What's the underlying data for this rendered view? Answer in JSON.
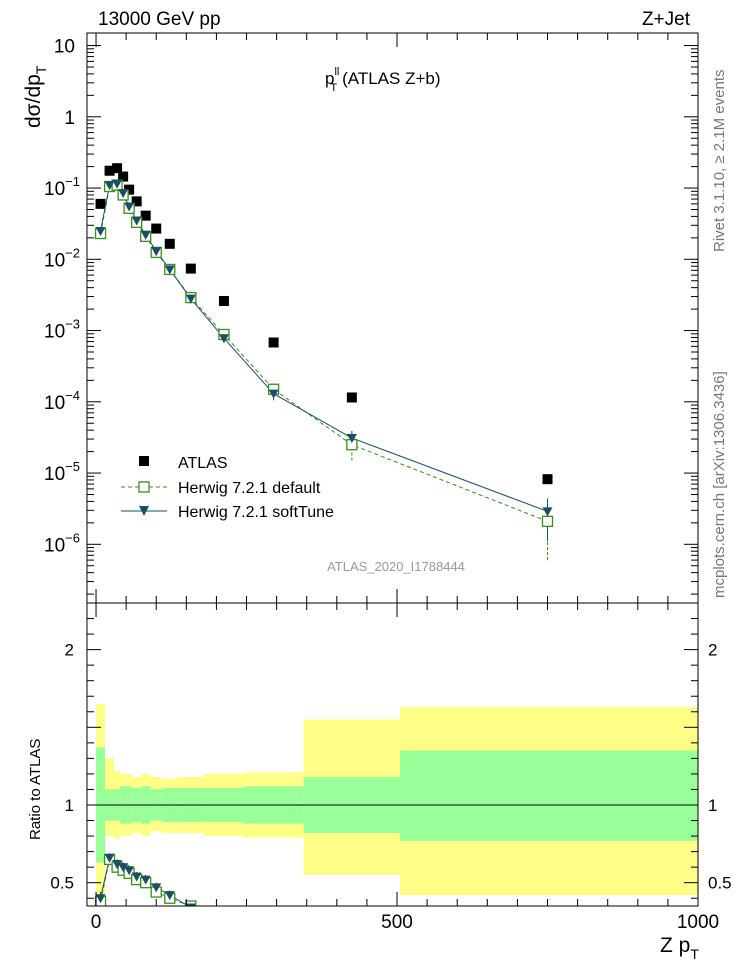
{
  "header": {
    "left": "13000 GeV pp",
    "right": "Z+Jet"
  },
  "side_text": {
    "rivet": "Rivet 3.1.10, ≥ 2.1M events",
    "mcplots": "mcplots.cern.ch [arXiv:1306.3436]"
  },
  "chart_data": [
    {
      "type": "scatter",
      "panel": "main",
      "title": "p_T^ll (ATLAS Z+b)",
      "title_main": "p",
      "title_sup": "ll",
      "title_sub": "T",
      "title_rest": "(ATLAS Z+b)",
      "ylabel": "dσ/dp_T",
      "ylabel_main": "dσ/dp",
      "ylabel_sub": "T",
      "xlabel": "Z p_T",
      "yscale": "log",
      "xlim": [
        -15,
        1000
      ],
      "ylim": [
        1.5e-07,
        15
      ],
      "y_tick_labels": [
        {
          "value": 10,
          "label": "10"
        },
        {
          "value": 1,
          "label": "1"
        },
        {
          "value": 0.1,
          "label": "10",
          "exp": "−1"
        },
        {
          "value": 0.01,
          "label": "10",
          "exp": "−2"
        },
        {
          "value": 0.001,
          "label": "10",
          "exp": "−3"
        },
        {
          "value": 0.0001,
          "label": "10",
          "exp": "−4"
        },
        {
          "value": 1e-05,
          "label": "10",
          "exp": "−5"
        },
        {
          "value": 1e-06,
          "label": "10",
          "exp": "−6"
        }
      ],
      "watermark": "ATLAS_2020_I1788444",
      "legend": {
        "position": "bottom-left",
        "entries": [
          "ATLAS",
          "Herwig 7.2.1 default",
          "Herwig 7.2.1 softTune"
        ]
      },
      "series": [
        {
          "name": "ATLAS",
          "style": "black-square",
          "color": "#000000",
          "x": [
            7.5,
            22.5,
            35,
            45,
            55,
            67.5,
            82.5,
            100,
            122.5,
            157.5,
            212.5,
            295,
            425,
            750
          ],
          "y": [
            0.06,
            0.175,
            0.19,
            0.145,
            0.095,
            0.065,
            0.041,
            0.027,
            0.0165,
            0.0074,
            0.0026,
            0.00068,
            0.000115,
            8.2e-06
          ],
          "xerr": [
            7.5,
            7.5,
            5,
            5,
            5,
            7.5,
            7.5,
            10,
            12.5,
            22.5,
            32.5,
            50,
            80,
            250
          ]
        },
        {
          "name": "Herwig 7.2.1 default",
          "style": "open-square-dashed",
          "color": "#3a8e1a",
          "x": [
            7.5,
            22.5,
            35,
            45,
            55,
            67.5,
            82.5,
            100,
            122.5,
            157.5,
            212.5,
            295,
            425,
            750
          ],
          "y": [
            0.023,
            0.105,
            0.11,
            0.08,
            0.052,
            0.033,
            0.021,
            0.0125,
            0.0072,
            0.0029,
            0.00088,
            0.00015,
            2.5e-05,
            2.1e-06
          ],
          "yerr_low": [
            0.002,
            0.006,
            0.006,
            0.005,
            0.003,
            0.002,
            0.0015,
            0.001,
            0.0006,
            0.00025,
            8e-05,
            3e-05,
            1e-05,
            1.5e-06
          ],
          "yerr_high": [
            0.002,
            0.006,
            0.006,
            0.005,
            0.003,
            0.002,
            0.0015,
            0.001,
            0.0006,
            0.00025,
            8e-05,
            3e-05,
            1e-05,
            1.2e-06
          ]
        },
        {
          "name": "Herwig 7.2.1 softTune",
          "style": "filled-triangle-solid",
          "color": "#1a4f66",
          "x": [
            7.5,
            22.5,
            35,
            45,
            55,
            67.5,
            82.5,
            100,
            122.5,
            157.5,
            212.5,
            295,
            425,
            750
          ],
          "y": [
            0.025,
            0.11,
            0.115,
            0.085,
            0.055,
            0.035,
            0.022,
            0.013,
            0.0072,
            0.0028,
            0.00078,
            0.00013,
            3.1e-05,
            2.9e-06
          ],
          "yerr_low": [
            0.002,
            0.006,
            0.006,
            0.005,
            0.003,
            0.002,
            0.0015,
            0.001,
            0.0006,
            0.00025,
            7e-05,
            2.5e-05,
            8e-06,
            1.8e-06
          ],
          "yerr_high": [
            0.002,
            0.006,
            0.006,
            0.005,
            0.003,
            0.002,
            0.0015,
            0.001,
            0.0006,
            0.00025,
            7e-05,
            2.5e-05,
            8e-06,
            1.5e-06
          ]
        }
      ]
    },
    {
      "type": "scatter",
      "panel": "ratio",
      "ylabel": "Ratio to ATLAS",
      "xlabel": "Z p_T",
      "xlabel_main": "Z p",
      "xlabel_sub": "T",
      "xlim": [
        -15,
        1000
      ],
      "ylim": [
        0.35,
        2.3
      ],
      "x_tick_labels": [
        "0",
        "500",
        "1000"
      ],
      "y_tick_labels": [
        "0.5",
        "1",
        "2"
      ],
      "reference_line": 1,
      "bands": {
        "bin_edges": [
          0,
          15,
          30,
          40,
          50,
          60,
          75,
          90,
          110,
          135,
          180,
          245,
          345,
          505,
          1000
        ],
        "inner_color": "#99ff99",
        "outer_color": "#ffff88",
        "inner_low": [
          0.63,
          0.9,
          0.9,
          0.88,
          0.88,
          0.89,
          0.88,
          0.9,
          0.89,
          0.89,
          0.89,
          0.88,
          0.82,
          0.77
        ],
        "inner_high": [
          1.37,
          1.1,
          1.1,
          1.12,
          1.12,
          1.11,
          1.12,
          1.1,
          1.11,
          1.11,
          1.11,
          1.12,
          1.18,
          1.35
        ],
        "outer_low": [
          0.35,
          0.8,
          0.78,
          0.8,
          0.8,
          0.82,
          0.8,
          0.83,
          0.82,
          0.82,
          0.8,
          0.79,
          0.55,
          0.42
        ],
        "outer_high": [
          1.65,
          1.3,
          1.22,
          1.2,
          1.2,
          1.18,
          1.2,
          1.18,
          1.17,
          1.18,
          1.2,
          1.21,
          1.55,
          1.63
        ]
      },
      "series": [
        {
          "name": "Herwig 7.2.1 default",
          "x": [
            7.5,
            22.5,
            35,
            45,
            55,
            67.5,
            82.5,
            100,
            122.5,
            157.5
          ],
          "y": [
            0.38,
            0.65,
            0.6,
            0.58,
            0.56,
            0.52,
            0.5,
            0.44,
            0.4,
            0.35
          ],
          "yerr": [
            0.04,
            0.03,
            0.03,
            0.03,
            0.03,
            0.03,
            0.03,
            0.03,
            0.03,
            0.03
          ]
        },
        {
          "name": "Herwig 7.2.1 softTune",
          "x": [
            7.5,
            22.5,
            35,
            45,
            55,
            67.5,
            82.5,
            100,
            122.5,
            157.5
          ],
          "y": [
            0.4,
            0.66,
            0.62,
            0.6,
            0.58,
            0.54,
            0.52,
            0.47,
            0.42,
            0.34
          ],
          "yerr": [
            0.04,
            0.03,
            0.03,
            0.03,
            0.03,
            0.03,
            0.03,
            0.03,
            0.03,
            0.03
          ]
        }
      ]
    }
  ]
}
